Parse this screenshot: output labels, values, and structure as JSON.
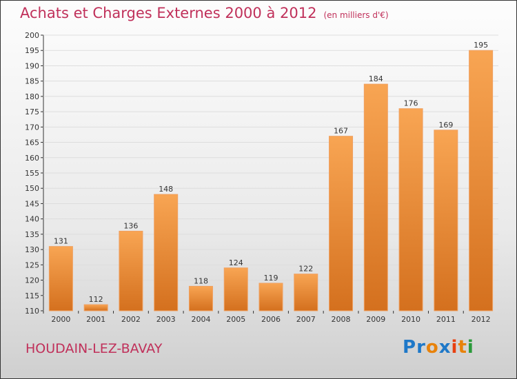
{
  "title": "Achats et Charges Externes 2000 à 2012",
  "unit": "(en milliers d'€)",
  "city": "HOUDAIN-LEZ-BAVAY",
  "logo": "Proxiti",
  "chart_data": {
    "type": "bar",
    "title": "Achats et Charges Externes 2000 à 2012",
    "subtitle": "(en milliers d'€)",
    "categories": [
      "2000",
      "2001",
      "2002",
      "2003",
      "2004",
      "2005",
      "2006",
      "2007",
      "2008",
      "2009",
      "2010",
      "2011",
      "2012"
    ],
    "values": [
      131,
      112,
      136,
      148,
      118,
      124,
      119,
      122,
      167,
      184,
      176,
      169,
      195
    ],
    "ylim": [
      110,
      200
    ],
    "yticks": [
      110,
      115,
      120,
      125,
      130,
      135,
      140,
      145,
      150,
      155,
      160,
      165,
      170,
      175,
      180,
      185,
      190,
      195,
      200
    ],
    "xlabel": "",
    "ylabel": "",
    "bar_color": "#e8862e"
  }
}
